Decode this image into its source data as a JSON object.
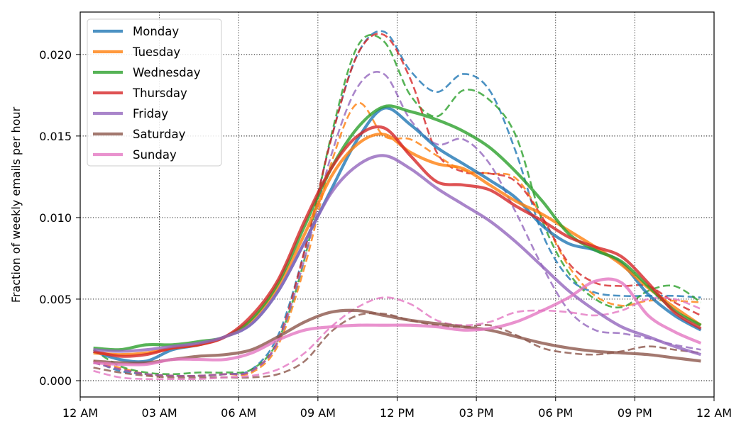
{
  "chart_data": {
    "type": "line",
    "title": "",
    "xlabel": "",
    "ylabel": "Fraction of weekly emails per hour",
    "xlim": [
      0,
      24
    ],
    "ylim": [
      -0.001,
      0.0226
    ],
    "x_ticks": [
      0,
      3,
      6,
      9,
      12,
      15,
      18,
      21,
      24
    ],
    "x_tick_labels": [
      "12 AM",
      "03 AM",
      "06 AM",
      "09 AM",
      "12 PM",
      "03 PM",
      "06 PM",
      "09 PM",
      "12 AM"
    ],
    "y_ticks": [
      0.0,
      0.005,
      0.01,
      0.015,
      0.02
    ],
    "y_tick_labels": [
      "0.000",
      "0.005",
      "0.010",
      "0.015",
      "0.020"
    ],
    "grid": true,
    "legend_position": "top-left",
    "x": [
      0.5,
      1.5,
      2.5,
      3.5,
      4.5,
      5.5,
      6.5,
      7.5,
      8.5,
      9.5,
      10.5,
      11.5,
      12.5,
      13.5,
      14.5,
      15.5,
      16.5,
      17.5,
      18.5,
      19.5,
      20.5,
      21.5,
      22.5,
      23.5
    ],
    "series": [
      {
        "name": "Monday",
        "color": "#1f77b4",
        "style": "solid",
        "values": [
          0.0018,
          0.0013,
          0.0012,
          0.0019,
          0.0022,
          0.0027,
          0.0035,
          0.0055,
          0.0085,
          0.0117,
          0.0148,
          0.0167,
          0.0157,
          0.0143,
          0.0133,
          0.0123,
          0.0112,
          0.0095,
          0.0084,
          0.008,
          0.0072,
          0.0053,
          0.004,
          0.0031
        ]
      },
      {
        "name": "Monday",
        "color": "#1f77b4",
        "style": "dashed",
        "values": [
          0.0012,
          0.0006,
          0.0004,
          0.0003,
          0.0003,
          0.0004,
          0.0007,
          0.0028,
          0.008,
          0.0148,
          0.02,
          0.0214,
          0.019,
          0.0177,
          0.0188,
          0.0178,
          0.014,
          0.009,
          0.0063,
          0.0054,
          0.0052,
          0.0052,
          0.0052,
          0.0051
        ]
      },
      {
        "name": "Tuesday",
        "color": "#ff7f0e",
        "style": "solid",
        "values": [
          0.0017,
          0.0016,
          0.0017,
          0.002,
          0.0022,
          0.0027,
          0.0037,
          0.0058,
          0.009,
          0.0125,
          0.0145,
          0.0151,
          0.014,
          0.0133,
          0.013,
          0.012,
          0.011,
          0.0102,
          0.0092,
          0.0082,
          0.0071,
          0.0057,
          0.0045,
          0.0034
        ]
      },
      {
        "name": "Tuesday",
        "color": "#ff7f0e",
        "style": "dashed",
        "values": [
          0.0012,
          0.0008,
          0.0004,
          0.0003,
          0.0003,
          0.0004,
          0.0005,
          0.0022,
          0.007,
          0.0133,
          0.017,
          0.015,
          0.0148,
          0.0138,
          0.0129,
          0.0127,
          0.0124,
          0.01,
          0.007,
          0.0052,
          0.0046,
          0.0049,
          0.0049,
          0.0048
        ]
      },
      {
        "name": "Wednesday",
        "color": "#2ca02c",
        "style": "solid",
        "values": [
          0.002,
          0.0019,
          0.0022,
          0.0022,
          0.0024,
          0.0027,
          0.0038,
          0.006,
          0.0095,
          0.013,
          0.0155,
          0.0168,
          0.0165,
          0.016,
          0.0153,
          0.0143,
          0.0128,
          0.011,
          0.009,
          0.008,
          0.0073,
          0.0058,
          0.0043,
          0.0034
        ]
      },
      {
        "name": "Wednesday",
        "color": "#2ca02c",
        "style": "dashed",
        "values": [
          0.0019,
          0.0009,
          0.0005,
          0.0004,
          0.0005,
          0.0005,
          0.0007,
          0.0025,
          0.0075,
          0.015,
          0.0205,
          0.0208,
          0.0175,
          0.0162,
          0.0178,
          0.0172,
          0.015,
          0.0098,
          0.0066,
          0.005,
          0.0045,
          0.0055,
          0.0058,
          0.0048
        ]
      },
      {
        "name": "Thursday",
        "color": "#d62728",
        "style": "solid",
        "values": [
          0.0018,
          0.0015,
          0.0016,
          0.002,
          0.0022,
          0.0027,
          0.004,
          0.0062,
          0.0098,
          0.013,
          0.015,
          0.0155,
          0.0138,
          0.0122,
          0.012,
          0.0117,
          0.0107,
          0.0098,
          0.0088,
          0.0082,
          0.0076,
          0.006,
          0.0042,
          0.0032
        ]
      },
      {
        "name": "Thursday",
        "color": "#d62728",
        "style": "dashed",
        "values": [
          0.0011,
          0.0007,
          0.0004,
          0.0003,
          0.0003,
          0.0004,
          0.0006,
          0.0025,
          0.008,
          0.0148,
          0.02,
          0.0212,
          0.0185,
          0.014,
          0.0128,
          0.0127,
          0.0122,
          0.01,
          0.0072,
          0.006,
          0.0058,
          0.0058,
          0.0048,
          0.004
        ]
      },
      {
        "name": "Friday",
        "color": "#9467bd",
        "style": "solid",
        "values": [
          0.0019,
          0.0018,
          0.0019,
          0.0021,
          0.0023,
          0.0027,
          0.0035,
          0.0055,
          0.0085,
          0.0115,
          0.0132,
          0.0138,
          0.013,
          0.0118,
          0.0108,
          0.0098,
          0.0085,
          0.007,
          0.0055,
          0.0043,
          0.0033,
          0.0027,
          0.0021,
          0.0016
        ]
      },
      {
        "name": "Friday",
        "color": "#9467bd",
        "style": "dashed",
        "values": [
          0.0011,
          0.0007,
          0.0004,
          0.0003,
          0.0003,
          0.0004,
          0.0006,
          0.0024,
          0.0075,
          0.0138,
          0.018,
          0.0188,
          0.016,
          0.0145,
          0.0148,
          0.0133,
          0.0103,
          0.007,
          0.0043,
          0.0031,
          0.0029,
          0.0026,
          0.0022,
          0.0019
        ]
      },
      {
        "name": "Saturday",
        "color": "#8c564b",
        "style": "solid",
        "values": [
          0.0012,
          0.0011,
          0.0011,
          0.0013,
          0.0015,
          0.0016,
          0.0019,
          0.0027,
          0.0036,
          0.0042,
          0.0043,
          0.004,
          0.0037,
          0.0035,
          0.0033,
          0.0031,
          0.0027,
          0.0023,
          0.002,
          0.0018,
          0.0017,
          0.0016,
          0.0014,
          0.0012
        ]
      },
      {
        "name": "Saturday",
        "color": "#8c564b",
        "style": "dashed",
        "values": [
          0.0008,
          0.0005,
          0.0003,
          0.0002,
          0.0002,
          0.0002,
          0.0002,
          0.0004,
          0.0012,
          0.003,
          0.004,
          0.0041,
          0.0037,
          0.0034,
          0.0033,
          0.0034,
          0.0028,
          0.002,
          0.0017,
          0.0016,
          0.0018,
          0.0021,
          0.0019,
          0.0017
        ]
      },
      {
        "name": "Sunday",
        "color": "#e377c2",
        "style": "solid",
        "values": [
          0.0011,
          0.001,
          0.001,
          0.0013,
          0.0013,
          0.0013,
          0.0017,
          0.0025,
          0.0031,
          0.0033,
          0.0034,
          0.0034,
          0.0034,
          0.0033,
          0.0031,
          0.0032,
          0.0036,
          0.0043,
          0.0051,
          0.0061,
          0.006,
          0.004,
          0.003,
          0.0023
        ]
      },
      {
        "name": "Sunday",
        "color": "#e377c2",
        "style": "dashed",
        "values": [
          0.0006,
          0.0002,
          0.0001,
          0.0001,
          0.0001,
          0.0002,
          0.0003,
          0.0007,
          0.0017,
          0.0033,
          0.0045,
          0.0051,
          0.0047,
          0.0037,
          0.0034,
          0.0036,
          0.0042,
          0.0043,
          0.0042,
          0.004,
          0.0043,
          0.005,
          0.005,
          0.0044
        ]
      }
    ],
    "legend": [
      "Monday",
      "Tuesday",
      "Wednesday",
      "Thursday",
      "Friday",
      "Saturday",
      "Sunday"
    ]
  }
}
